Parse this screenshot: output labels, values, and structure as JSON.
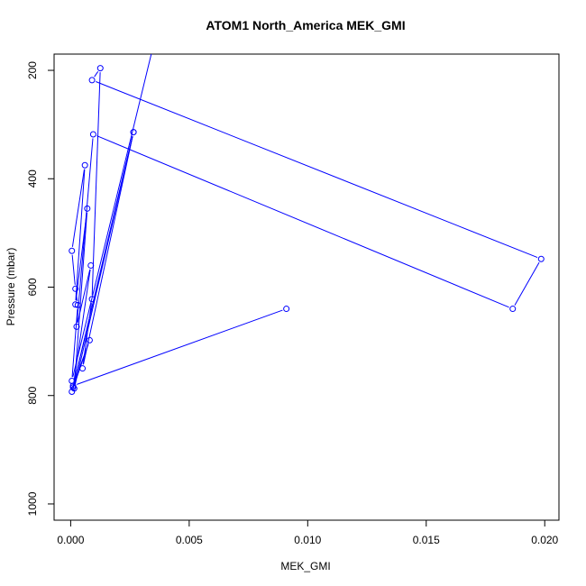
{
  "chart_data": {
    "type": "line",
    "title": "ATOM1 North_America MEK_GMI",
    "xlabel": "MEK_GMI",
    "ylabel": "Pressure (mbar)",
    "xlim": [
      -0.0007,
      0.0206
    ],
    "ylim": [
      1030,
      170
    ],
    "y_reversed": true,
    "grid": false,
    "legend": "none",
    "series_color": "#0000ff",
    "marker": "open-circle",
    "x_ticks": [
      0.0,
      0.005,
      0.01,
      0.015,
      0.02
    ],
    "x_tick_labels": [
      "0.000",
      "0.005",
      "0.010",
      "0.015",
      "0.020"
    ],
    "y_ticks": [
      200,
      400,
      600,
      800,
      1000
    ],
    "y_tick_labels": [
      "200",
      "400",
      "600",
      "800",
      "1000"
    ],
    "lines_only_start": [
      {
        "x": 0.00012,
        "y": 80
      },
      {
        "x": 0.0034,
        "y": 170
      }
    ],
    "points": [
      {
        "x": 5e-05,
        "y": 773
      },
      {
        "x": 0.0003,
        "y": 633
      },
      {
        "x": 0.0002,
        "y": 603
      },
      {
        "x": 5e-05,
        "y": 533
      },
      {
        "x": 0.0006,
        "y": 375
      },
      {
        "x": 0.0002,
        "y": 632
      },
      {
        "x": 0.0007,
        "y": 455
      },
      {
        "x": 0.00015,
        "y": 787
      },
      {
        "x": 0.00265,
        "y": 314
      },
      {
        "x": 0.0001,
        "y": 785
      },
      {
        "x": 0.00085,
        "y": 560
      },
      {
        "x": 0.00025,
        "y": 673
      },
      {
        "x": 0.00095,
        "y": 318
      },
      {
        "x": 0.01865,
        "y": 640
      },
      {
        "x": 0.01985,
        "y": 548
      },
      {
        "x": 0.0009,
        "y": 218
      },
      {
        "x": 0.00125,
        "y": 196
      },
      {
        "x": 0.0009,
        "y": 622
      },
      {
        "x": 0.0005,
        "y": 750
      },
      {
        "x": 0.00265,
        "y": 314
      },
      {
        "x": 5e-05,
        "y": 793
      },
      {
        "x": 0.0008,
        "y": 698
      },
      {
        "x": 0.0001,
        "y": 782
      },
      {
        "x": 0.0091,
        "y": 640
      }
    ]
  }
}
